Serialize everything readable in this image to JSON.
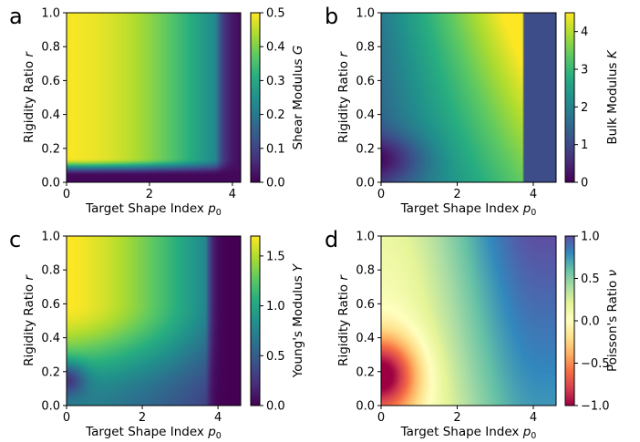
{
  "chart_data": [
    {
      "type": "heatmap",
      "panel_label": "a",
      "xlabel": "Target Shape Index ",
      "xlabel_symbol": "p",
      "xlabel_subscript": "0",
      "ylabel": "Rigidity Ratio ",
      "ylabel_symbol": "r",
      "xlim": [
        0,
        4.2
      ],
      "ylim": [
        0,
        1.0
      ],
      "xticks": [
        "0",
        "2",
        "4"
      ],
      "yticks": [
        "0.0",
        "0.2",
        "0.4",
        "0.6",
        "0.8",
        "1.0"
      ],
      "colormap": "viridis",
      "colorbar": {
        "label": "Shear Modulus ",
        "symbol": "G",
        "range": [
          0,
          0.5
        ],
        "ticks": [
          "0.0",
          "0.1",
          "0.2",
          "0.3",
          "0.4",
          "0.5"
        ]
      },
      "description": "G is highest (~0.5) at small p0 and large r, decays toward ~0 as p0 increases past ~3.6, and is ~0 at small r."
    },
    {
      "type": "heatmap",
      "panel_label": "b",
      "xlabel": "Target Shape Index ",
      "xlabel_symbol": "p",
      "xlabel_subscript": "0",
      "ylabel": "Rigidity Ratio ",
      "ylabel_symbol": "r",
      "xlim": [
        0,
        4.6
      ],
      "ylim": [
        0,
        1.0
      ],
      "xticks": [
        "0",
        "2",
        "4"
      ],
      "yticks": [
        "0.0",
        "0.2",
        "0.4",
        "0.6",
        "0.8",
        "1.0"
      ],
      "colormap": "viridis",
      "colorbar": {
        "label": "Bulk Modulus ",
        "symbol": "K",
        "range": [
          0,
          4.5
        ],
        "ticks": [
          "0",
          "1",
          "2",
          "3",
          "4"
        ]
      },
      "description": "K increases with p0 and r up to ~4.5 near p0 = 3.7, r = 1; sharp drop to ~1 for p0 > 3.72; minimum near p0 = 0, r = 0.15."
    },
    {
      "type": "heatmap",
      "panel_label": "c",
      "xlabel": "Target Shape Index ",
      "xlabel_symbol": "p",
      "xlabel_subscript": "0",
      "ylabel": "Rigidity Ratio ",
      "ylabel_symbol": "r",
      "xlim": [
        0,
        4.6
      ],
      "ylim": [
        0,
        1.0
      ],
      "xticks": [
        "0",
        "2",
        "4"
      ],
      "yticks": [
        "0.0",
        "0.2",
        "0.4",
        "0.6",
        "0.8",
        "1.0"
      ],
      "colormap": "viridis",
      "colorbar": {
        "label": "Young's Modulus ",
        "symbol": "Y",
        "range": [
          0,
          1.7
        ],
        "ticks": [
          "0.0",
          "0.5",
          "1.0",
          "1.5"
        ]
      },
      "description": "Y is highest (~1.7) at small p0 and large r, decreasing with p0 to ~0 beyond p0 ~ 3.7; low near r ~ 0.15 at small p0."
    },
    {
      "type": "heatmap",
      "panel_label": "d",
      "xlabel": "Target Shape Index ",
      "xlabel_symbol": "p",
      "xlabel_subscript": "0",
      "ylabel": "Rigidity Ratio ",
      "ylabel_symbol": "r",
      "xlim": [
        0,
        4.6
      ],
      "ylim": [
        0,
        1.0
      ],
      "xticks": [
        "0",
        "2",
        "4"
      ],
      "yticks": [
        "0.0",
        "0.2",
        "0.4",
        "0.6",
        "0.8",
        "1.0"
      ],
      "colormap": "Spectral",
      "colorbar": {
        "label": "Poisson's Ratio ",
        "symbol": "ν",
        "range": [
          -1.0,
          1.0
        ],
        "ticks": [
          "−1.0",
          "−0.5",
          "0.0",
          "0.5",
          "1.0"
        ]
      },
      "description": "ν is negative (~−1) near p0 = 0, r = 0.18, rises through 0 and increases toward ~1 at large p0."
    }
  ]
}
